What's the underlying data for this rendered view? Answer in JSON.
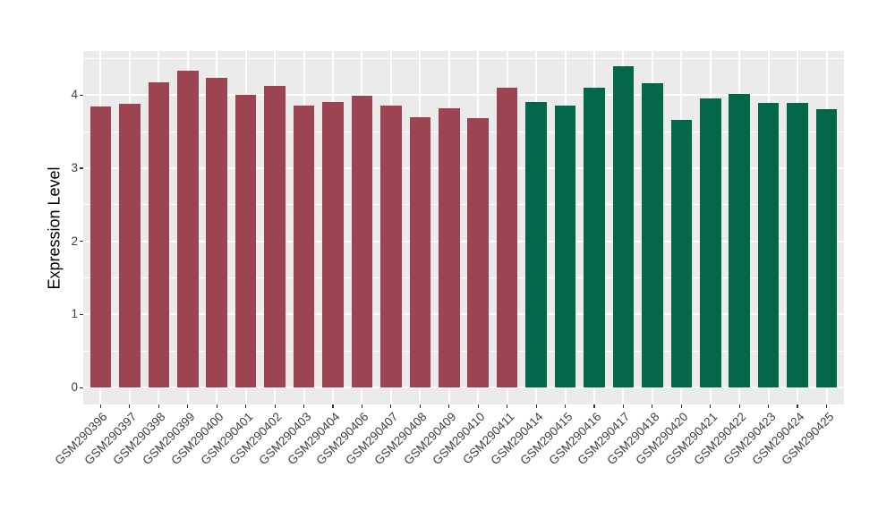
{
  "chart_data": {
    "type": "bar",
    "title": "",
    "xlabel": "",
    "ylabel": "Expression Level",
    "legend": "none",
    "grid": "major-and-minor",
    "y_ticks": [
      0,
      1,
      2,
      3,
      4
    ],
    "y_axis_range": [
      -0.23,
      4.61
    ],
    "categories": [
      "GSM290396",
      "GSM290397",
      "GSM290398",
      "GSM290399",
      "GSM290400",
      "GSM290401",
      "GSM290402",
      "GSM290403",
      "GSM290404",
      "GSM290406",
      "GSM290407",
      "GSM290408",
      "GSM290409",
      "GSM290410",
      "GSM290411",
      "GSM290414",
      "GSM290415",
      "GSM290416",
      "GSM290417",
      "GSM290418",
      "GSM290420",
      "GSM290421",
      "GSM290422",
      "GSM290423",
      "GSM290424",
      "GSM290425"
    ],
    "values": [
      3.84,
      3.88,
      4.17,
      4.33,
      4.23,
      4.0,
      4.13,
      3.86,
      3.9,
      3.99,
      3.86,
      3.7,
      3.82,
      3.68,
      4.1,
      3.9,
      3.85,
      4.1,
      4.39,
      4.16,
      3.66,
      3.95,
      4.02,
      3.89,
      3.89,
      3.81
    ],
    "bar_group": [
      "maroon",
      "maroon",
      "maroon",
      "maroon",
      "maroon",
      "maroon",
      "maroon",
      "maroon",
      "maroon",
      "maroon",
      "maroon",
      "maroon",
      "maroon",
      "maroon",
      "maroon",
      "green",
      "green",
      "green",
      "green",
      "green",
      "green",
      "green",
      "green",
      "green",
      "green",
      "green"
    ],
    "group_colors": {
      "maroon": "#9C4451",
      "green": "#03684A"
    },
    "styles": {
      "panel_background": "#EBEBEB",
      "grid_color": "#FFFFFF",
      "axis_text_color": "#404040",
      "axis_title_color": "#000000",
      "tick_color": "#333333",
      "background": "#FFFFFF"
    }
  }
}
